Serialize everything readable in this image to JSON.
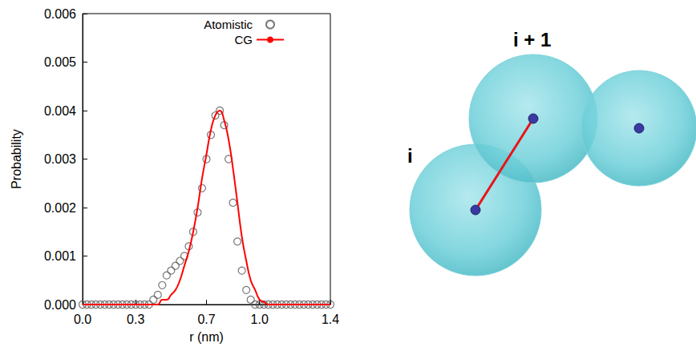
{
  "chart_data": {
    "type": "line",
    "x_label": "r (nm)",
    "y_label": "Probability",
    "xlim": [
      0,
      1.4
    ],
    "xticks": [
      {
        "value": 0,
        "label": "0.0"
      },
      {
        "value": 0.3,
        "label": "0.3"
      },
      {
        "value": 0.7,
        "label": "0.7"
      },
      {
        "value": 1.0,
        "label": "1.0"
      },
      {
        "value": 1.4,
        "label": "1.4"
      }
    ],
    "ylim": [
      0,
      0.006
    ],
    "yticks": [
      {
        "value": 0,
        "label": "0.000"
      },
      {
        "value": 0.001,
        "label": "0.001"
      },
      {
        "value": 0.002,
        "label": "0.002"
      },
      {
        "value": 0.003,
        "label": "0.003"
      },
      {
        "value": 0.004,
        "label": "0.004"
      },
      {
        "value": 0.005,
        "label": "0.005"
      },
      {
        "value": 0.006,
        "label": "0.006"
      }
    ],
    "grid": false,
    "legend": "top-right",
    "x": [
      0,
      0.025,
      0.05,
      0.075,
      0.1,
      0.125,
      0.15,
      0.175,
      0.2,
      0.225,
      0.25,
      0.275,
      0.3,
      0.325,
      0.35,
      0.375,
      0.4,
      0.425,
      0.45,
      0.475,
      0.5,
      0.525,
      0.55,
      0.575,
      0.6,
      0.625,
      0.65,
      0.675,
      0.7,
      0.725,
      0.75,
      0.775,
      0.8,
      0.825,
      0.85,
      0.875,
      0.9,
      0.925,
      0.95,
      0.975,
      1.0,
      1.025,
      1.05,
      1.075,
      1.1,
      1.125,
      1.15,
      1.175,
      1.2,
      1.225,
      1.25,
      1.275,
      1.3,
      1.325,
      1.35,
      1.375,
      1.4
    ],
    "series": [
      {
        "name": "Atomistic",
        "type": "scatter",
        "marker": "open_circle",
        "color": "#555555",
        "values": [
          0,
          0,
          0,
          0,
          0,
          0,
          0,
          0,
          0,
          0,
          0,
          0,
          0,
          0,
          0,
          0,
          0.0001,
          0.0002,
          0.0004,
          0.0006,
          0.0007,
          0.0008,
          0.0009,
          0.001,
          0.0012,
          0.0015,
          0.0019,
          0.0024,
          0.003,
          0.0035,
          0.0039,
          0.004,
          0.0037,
          0.003,
          0.0021,
          0.0013,
          0.0007,
          0.0003,
          0.0001,
          0,
          0,
          0,
          0,
          0,
          0,
          0,
          0,
          0,
          0,
          0,
          0,
          0,
          0,
          0,
          0,
          0,
          0
        ]
      },
      {
        "name": "CG",
        "type": "line",
        "line_style": "solid",
        "color": "#ff0000",
        "values": [
          0,
          0,
          0,
          0,
          0,
          0,
          0,
          0,
          0,
          0,
          0,
          0,
          0,
          0,
          0,
          0,
          0,
          0,
          0.0001,
          0.0001,
          0.0002,
          0.0003,
          0.0005,
          0.0008,
          0.0011,
          0.0015,
          0.002,
          0.0026,
          0.0031,
          0.0036,
          0.0039,
          0.004,
          0.0038,
          0.0034,
          0.0028,
          0.0021,
          0.0014,
          0.0009,
          0.0005,
          0.0003,
          0.0001,
          5e-05,
          0,
          0,
          0,
          0,
          0,
          0,
          0,
          0,
          0,
          0,
          0,
          0,
          0,
          0,
          0
        ]
      }
    ]
  },
  "diagram": {
    "labels": [
      "i",
      "i + 1"
    ]
  }
}
